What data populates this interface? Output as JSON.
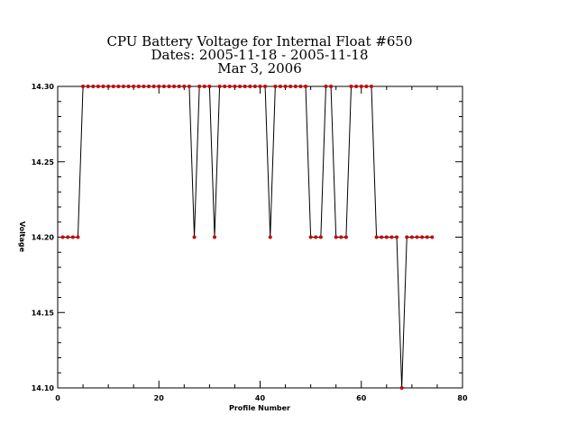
{
  "chart_data": {
    "type": "line",
    "title_lines": [
      "CPU Battery Voltage for Internal Float #650",
      "Dates:  2005-11-18 -  2005-11-18",
      "Mar  3, 2006"
    ],
    "xlabel": "Profile Number",
    "ylabel": "Voltage",
    "xlim": [
      0,
      80
    ],
    "ylim": [
      14.1,
      14.3
    ],
    "x_ticks": [
      0,
      20,
      40,
      60,
      80
    ],
    "x_tick_labels": [
      "0",
      "20",
      "40",
      "60",
      "80"
    ],
    "y_ticks": [
      14.1,
      14.15,
      14.2,
      14.25,
      14.3
    ],
    "y_tick_labels": [
      "14.10",
      "14.15",
      "14.20",
      "14.25",
      "14.30"
    ],
    "grid": false,
    "line_color": "#000000",
    "marker_color": "#cc0000",
    "series": [
      {
        "x": [
          1,
          2,
          3,
          4,
          5,
          6,
          7,
          8,
          9,
          10,
          11,
          12,
          13,
          14,
          15,
          16,
          17,
          18,
          19,
          20,
          21,
          22,
          23,
          24,
          25,
          26,
          27,
          28,
          29,
          30,
          31,
          32,
          33,
          34,
          35,
          36,
          37,
          38,
          39,
          40,
          41,
          42,
          43,
          44,
          45,
          46,
          47,
          48,
          49,
          50,
          51,
          52,
          53,
          54,
          55,
          56,
          57,
          58,
          59,
          60,
          61,
          62,
          63,
          64,
          65,
          66,
          67,
          68,
          69,
          70,
          71,
          72,
          73,
          74
        ],
        "y": [
          14.2,
          14.2,
          14.2,
          14.2,
          14.3,
          14.3,
          14.3,
          14.3,
          14.3,
          14.3,
          14.3,
          14.3,
          14.3,
          14.3,
          14.3,
          14.3,
          14.3,
          14.3,
          14.3,
          14.3,
          14.3,
          14.3,
          14.3,
          14.3,
          14.3,
          14.3,
          14.2,
          14.3,
          14.3,
          14.3,
          14.2,
          14.3,
          14.3,
          14.3,
          14.3,
          14.3,
          14.3,
          14.3,
          14.3,
          14.3,
          14.3,
          14.2,
          14.3,
          14.3,
          14.3,
          14.3,
          14.3,
          14.3,
          14.3,
          14.2,
          14.2,
          14.2,
          14.3,
          14.3,
          14.2,
          14.2,
          14.2,
          14.3,
          14.3,
          14.3,
          14.3,
          14.3,
          14.2,
          14.2,
          14.2,
          14.2,
          14.2,
          14.1,
          14.2,
          14.2,
          14.2,
          14.2,
          14.2,
          14.2
        ]
      }
    ]
  }
}
